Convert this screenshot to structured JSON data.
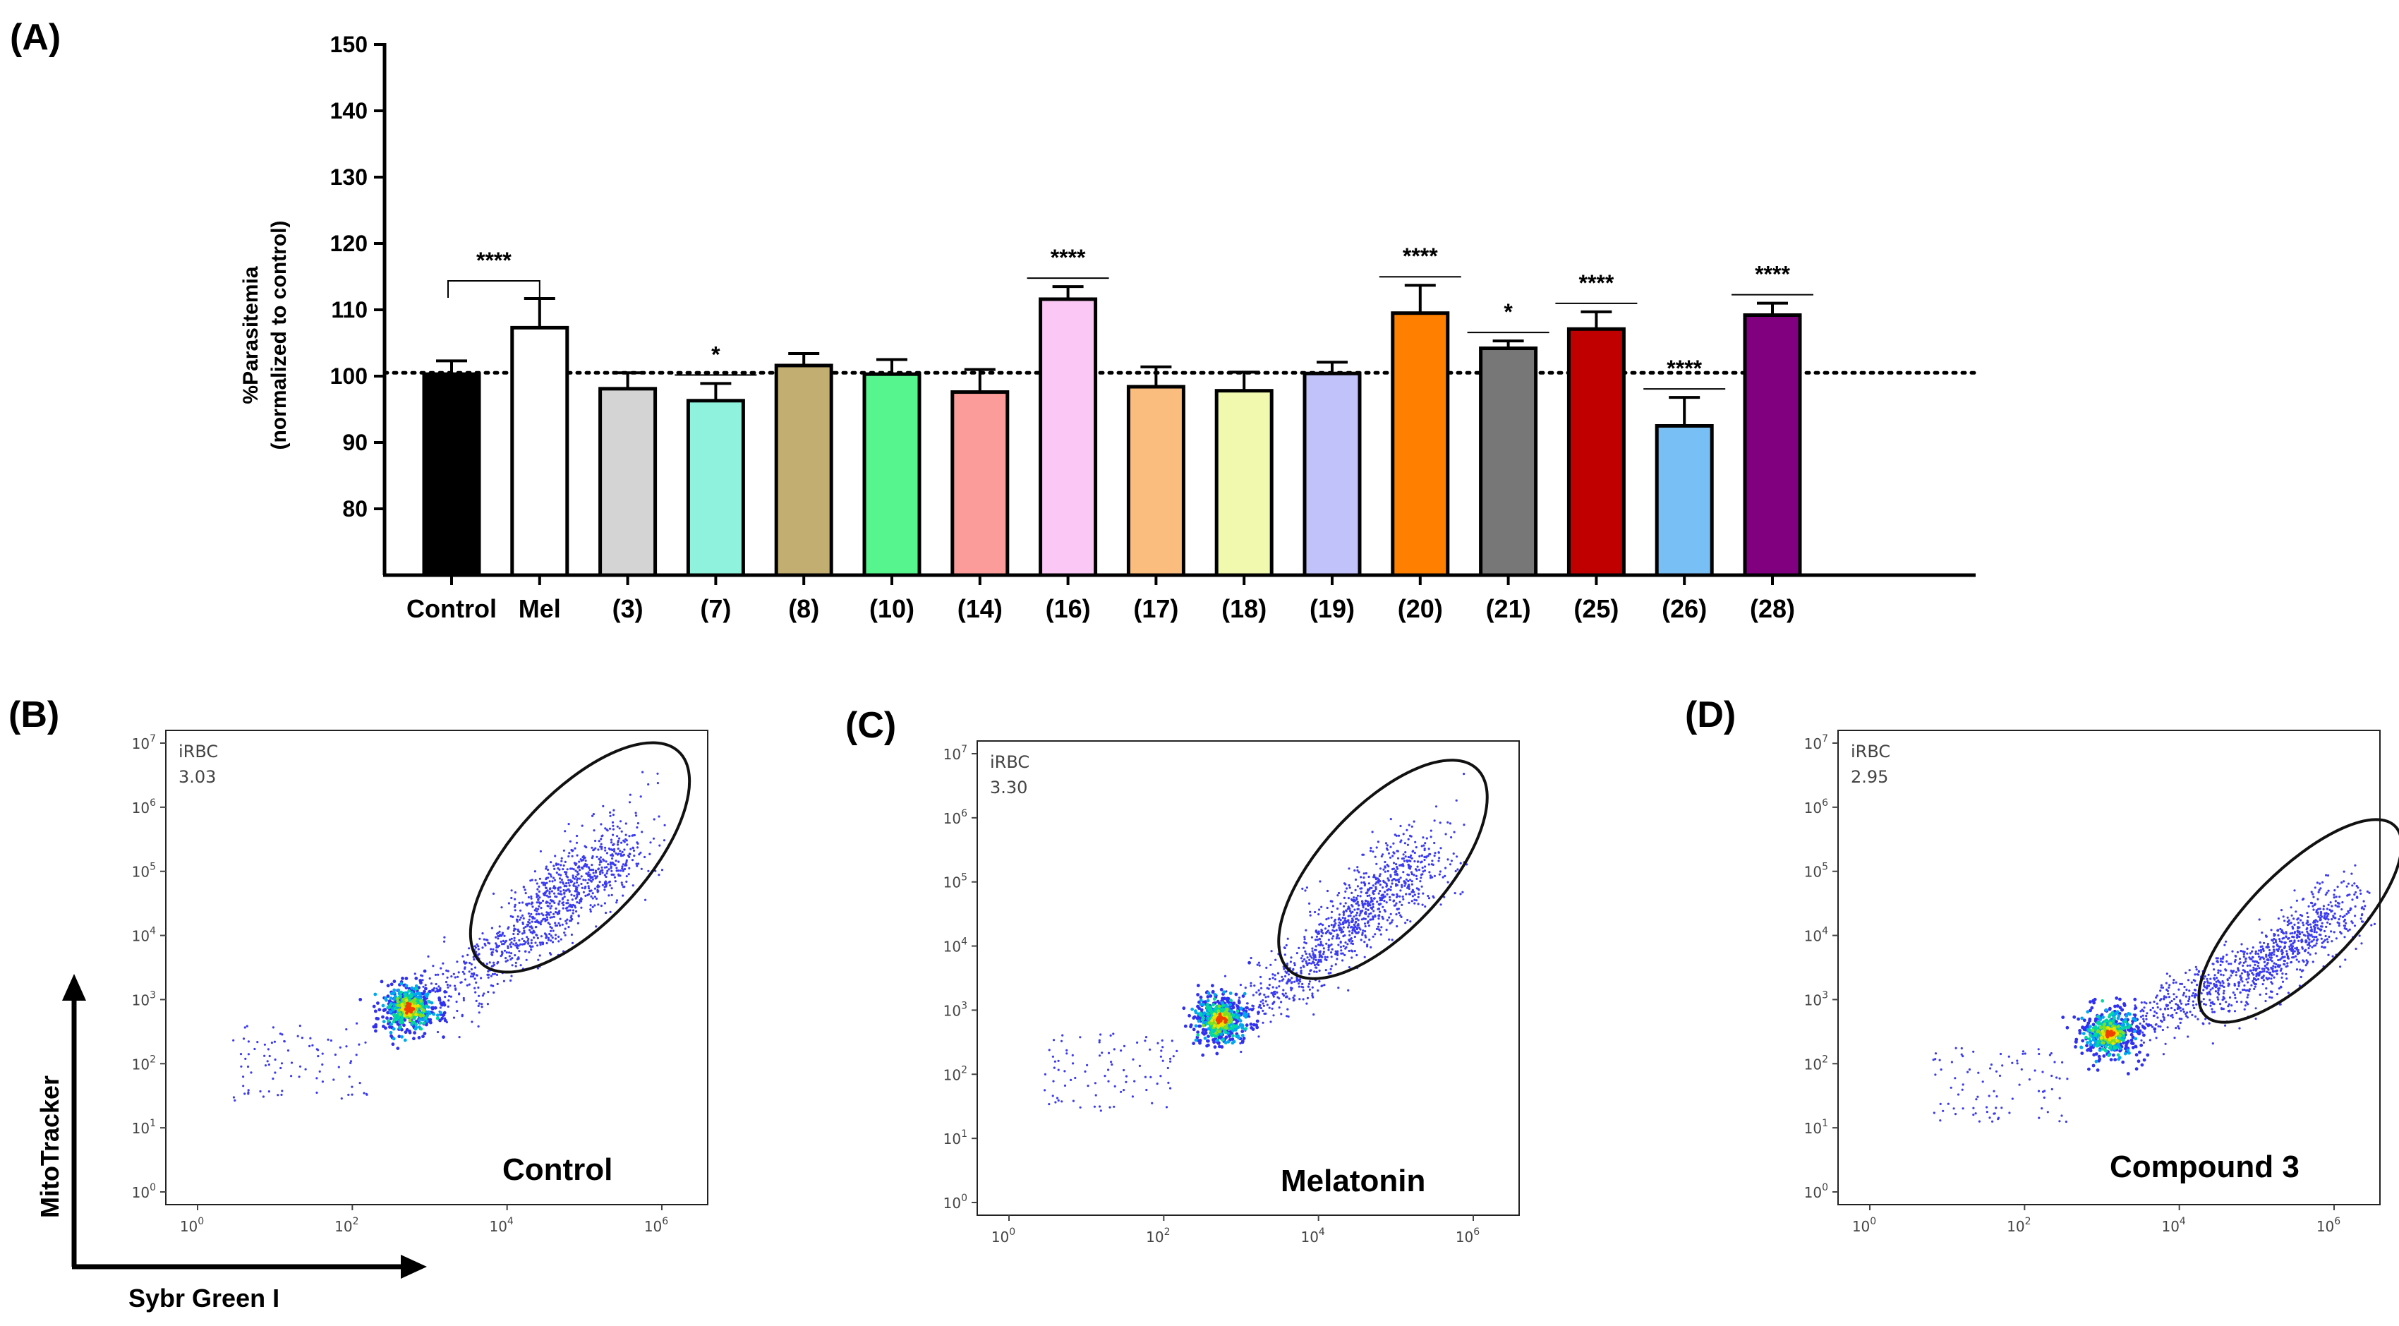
{
  "chart_data": [
    {
      "panel": "(A)",
      "type": "bar",
      "title": "",
      "xlabel": "",
      "ylabel_line1": "%Parasitemia",
      "ylabel_line2": "(normalized to control)",
      "ylim": [
        70,
        150
      ],
      "yticks": [
        80,
        90,
        100,
        110,
        120,
        130,
        140,
        150
      ],
      "reference_line": 100.5,
      "categories": [
        "Control",
        "Mel",
        "(3)",
        "(7)",
        "(8)",
        "(10)",
        "(14)",
        "(16)",
        "(17)",
        "(18)",
        "(19)",
        "(20)",
        "(21)",
        "(25)",
        "(26)",
        "(28)"
      ],
      "values": [
        100.3,
        107.3,
        98.1,
        96.3,
        101.6,
        100.3,
        97.6,
        111.6,
        98.4,
        97.8,
        100.4,
        109.5,
        104.2,
        107.1,
        92.5,
        109.2
      ],
      "errors": [
        2.0,
        4.4,
        2.4,
        2.6,
        1.8,
        2.2,
        3.4,
        1.9,
        3.0,
        2.8,
        1.7,
        4.2,
        1.1,
        2.6,
        4.3,
        1.8
      ],
      "colors": [
        "#000000",
        "#ffffff",
        "#d4d4d4",
        "#8ff2dd",
        "#c2ae70",
        "#56f58e",
        "#fb9c9a",
        "#fbc8f6",
        "#fbbd7e",
        "#f0f9ad",
        "#c2c2fb",
        "#ff8000",
        "#777777",
        "#c00000",
        "#78bff5",
        "#800080"
      ],
      "significance": [
        {
          "from": "Control",
          "to": "Mel",
          "label": "****",
          "bracket": true
        },
        {
          "from": "(7)",
          "to": "(7)",
          "label": "*",
          "bracket": false
        },
        {
          "from": "(16)",
          "to": "(16)",
          "label": "****",
          "bracket": false
        },
        {
          "from": "(20)",
          "to": "(20)",
          "label": "****",
          "bracket": false
        },
        {
          "from": "(21)",
          "to": "(21)",
          "label": "*",
          "bracket": false
        },
        {
          "from": "(25)",
          "to": "(25)",
          "label": "****",
          "bracket": false
        },
        {
          "from": "(26)",
          "to": "(26)",
          "label": "****",
          "bracket": false
        },
        {
          "from": "(28)",
          "to": "(28)",
          "label": "****",
          "bracket": false
        }
      ]
    },
    {
      "panel": "(B)",
      "type": "scatter",
      "x_scale": "log",
      "y_scale": "log",
      "x_ticks_exp": [
        0,
        2,
        4,
        6
      ],
      "y_ticks_exp": [
        0,
        1,
        2,
        3,
        4,
        5,
        6,
        7
      ],
      "gate_name": "iRBC",
      "gate_value": "3.03",
      "sample": "Control"
    },
    {
      "panel": "(C)",
      "type": "scatter",
      "x_scale": "log",
      "y_scale": "log",
      "x_ticks_exp": [
        0,
        2,
        4,
        6
      ],
      "y_ticks_exp": [
        0,
        1,
        2,
        3,
        4,
        5,
        6,
        7
      ],
      "gate_name": "iRBC",
      "gate_value": "3.30",
      "sample": "Melatonin"
    },
    {
      "panel": "(D)",
      "type": "scatter",
      "x_scale": "log",
      "y_scale": "log",
      "x_ticks_exp": [
        0,
        2,
        4,
        6
      ],
      "y_ticks_exp": [
        0,
        1,
        2,
        3,
        4,
        5,
        6,
        7
      ],
      "gate_name": "iRBC",
      "gate_value": "2.95",
      "sample": "Compound 3"
    }
  ],
  "flow_axes": {
    "y_title": "MitoTracker",
    "x_title": "Sybr Green I",
    "tick_base": "10"
  }
}
